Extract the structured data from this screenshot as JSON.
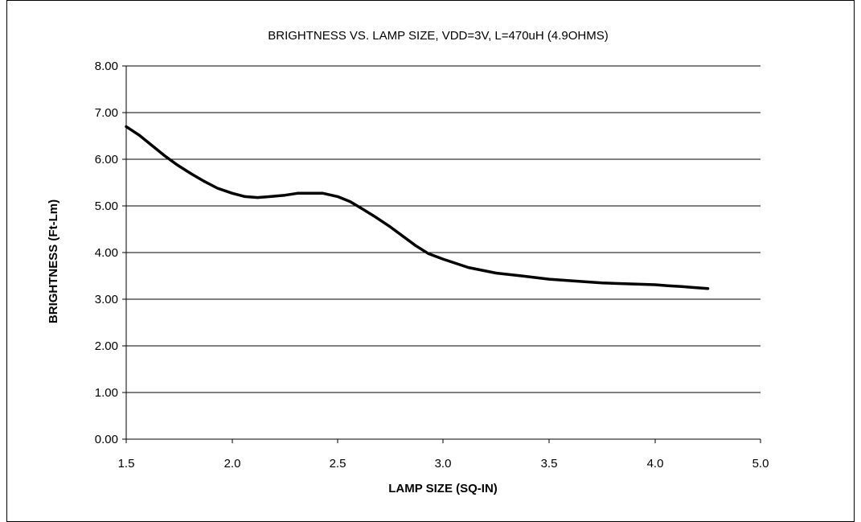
{
  "chart_data": {
    "type": "line",
    "title": "BRIGHTNESS VS. LAMP SIZE, VDD=3V, L=470uH (4.9OHMS)",
    "xlabel": "LAMP SIZE (SQ-IN)",
    "ylabel": "BRIGHTNESS (Ft-Lm)",
    "xlim": [
      1.5,
      5.0
    ],
    "ylim": [
      0,
      8
    ],
    "x_ticks": [
      "1.5",
      "2.0",
      "2.5",
      "3.0",
      "3.5",
      "4.0",
      "5.0"
    ],
    "x_tick_values": [
      1.5,
      2.0,
      2.5,
      3.0,
      3.5,
      4.0,
      5.0
    ],
    "y_ticks": [
      "0.00",
      "1.00",
      "2.00",
      "3.00",
      "4.00",
      "5.00",
      "6.00",
      "7.00",
      "8.00"
    ],
    "y_tick_values": [
      0,
      1,
      2,
      3,
      4,
      5,
      6,
      7,
      8
    ],
    "grid": "horizontal",
    "line_color": "#000000",
    "series": [
      {
        "x": [
          1.5,
          1.56,
          1.62,
          1.68,
          1.74,
          1.81,
          1.87,
          1.93,
          2.0,
          2.06,
          2.12,
          2.18,
          2.25,
          2.31,
          2.37,
          2.43,
          2.5,
          2.56,
          2.62,
          2.68,
          2.75,
          2.81,
          2.87,
          2.93,
          3.0,
          3.12,
          3.25,
          3.37,
          3.5,
          3.62,
          3.75,
          3.87,
          4.0,
          4.12,
          4.25,
          4.37,
          4.5
        ],
        "values": [
          6.7,
          6.52,
          6.3,
          6.08,
          5.88,
          5.68,
          5.52,
          5.38,
          5.27,
          5.2,
          5.18,
          5.2,
          5.23,
          5.27,
          5.27,
          5.27,
          5.2,
          5.09,
          4.93,
          4.76,
          4.55,
          4.35,
          4.15,
          3.98,
          3.86,
          3.68,
          3.56,
          3.5,
          3.43,
          3.39,
          3.35,
          3.33,
          3.31,
          3.29,
          3.27,
          3.25,
          3.23
        ]
      }
    ]
  }
}
